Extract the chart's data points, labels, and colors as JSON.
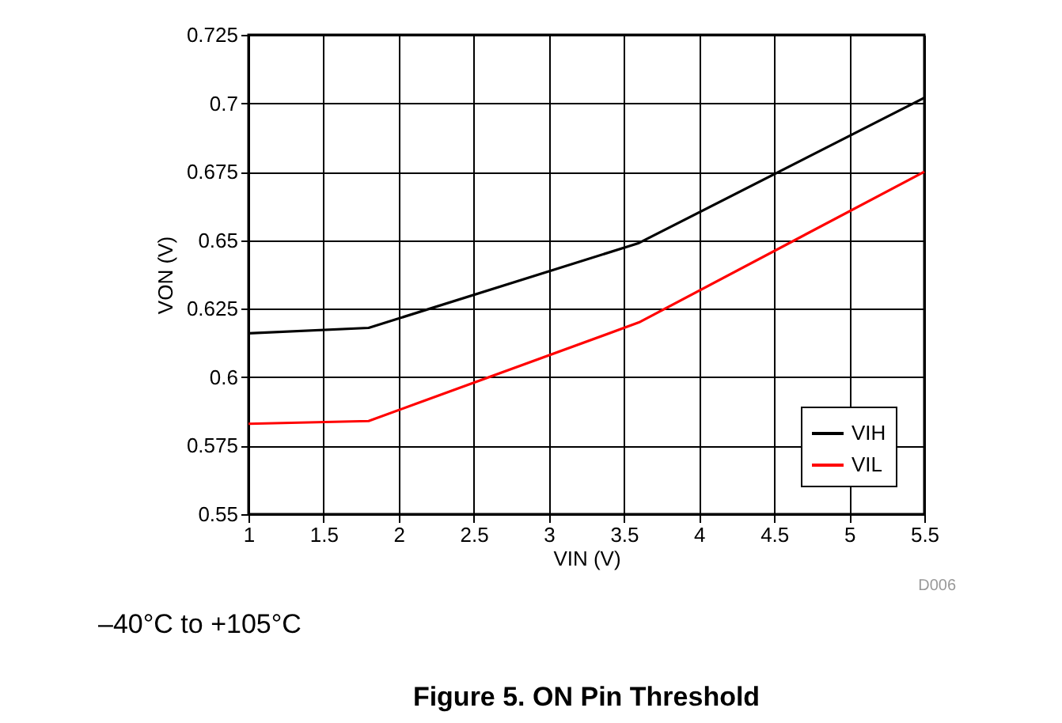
{
  "chart_data": {
    "type": "line",
    "title": "Figure 5. ON Pin Threshold",
    "xlabel": "VIN (V)",
    "ylabel": "VON (V)",
    "x": [
      1,
      1.8,
      3.6,
      5.5
    ],
    "series": [
      {
        "name": "VIH",
        "color": "#000000",
        "values": [
          0.616,
          0.618,
          0.649,
          0.702
        ]
      },
      {
        "name": "VIL",
        "color": "#ff0000",
        "values": [
          0.583,
          0.584,
          0.62,
          0.675
        ]
      }
    ],
    "xlim": [
      1,
      5.5
    ],
    "xticks": [
      1,
      1.5,
      2,
      2.5,
      3,
      3.5,
      4,
      4.5,
      5,
      5.5
    ],
    "ylim": [
      0.55,
      0.725
    ],
    "yticks": [
      0.55,
      0.575,
      0.6,
      0.625,
      0.65,
      0.675,
      0.7,
      0.725
    ],
    "grid": true,
    "legend": "bottom right",
    "marker": "none",
    "line_style": "solid",
    "annotations": [
      "D006",
      "–40°C to +105°C"
    ]
  }
}
